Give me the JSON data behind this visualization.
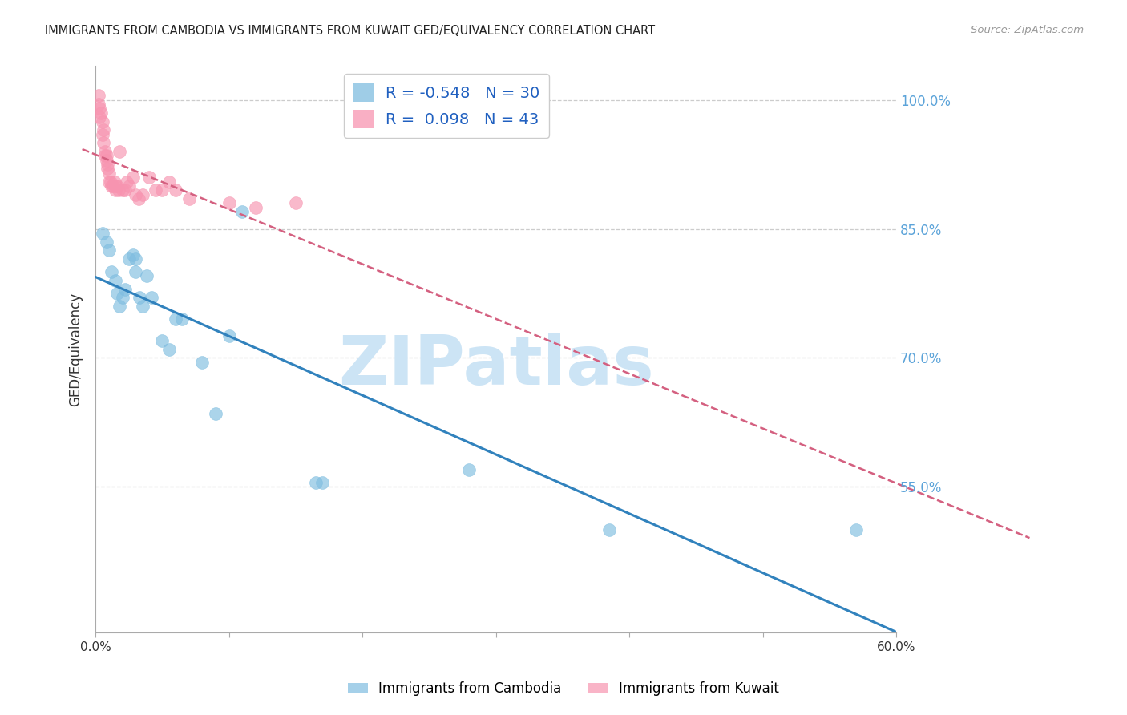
{
  "title": "IMMIGRANTS FROM CAMBODIA VS IMMIGRANTS FROM KUWAIT GED/EQUIVALENCY CORRELATION CHART",
  "source": "Source: ZipAtlas.com",
  "ylabel": "GED/Equivalency",
  "xmin": 0.0,
  "xmax": 0.6,
  "ymin": 0.38,
  "ymax": 1.04,
  "yticks": [
    0.55,
    0.7,
    0.85,
    1.0
  ],
  "ytick_labels": [
    "55.0%",
    "70.0%",
    "85.0%",
    "100.0%"
  ],
  "xtick_positions": [
    0.0,
    0.1,
    0.2,
    0.3,
    0.4,
    0.5,
    0.6
  ],
  "xtick_labels": [
    "0.0%",
    "",
    "",
    "",
    "",
    "",
    "60.0%"
  ],
  "cambodia_color": "#7fbde0",
  "kuwait_color": "#f794b0",
  "cambodia_label": "Immigrants from Cambodia",
  "kuwait_label": "Immigrants from Kuwait",
  "legend_r_cambodia": "R = -0.548",
  "legend_n_cambodia": "N = 30",
  "legend_r_kuwait": "R =  0.098",
  "legend_n_kuwait": "N = 43",
  "watermark": "ZIPatlas",
  "cambodia_x": [
    0.005,
    0.008,
    0.01,
    0.012,
    0.015,
    0.016,
    0.018,
    0.02,
    0.022,
    0.025,
    0.028,
    0.03,
    0.03,
    0.033,
    0.035,
    0.038,
    0.042,
    0.05,
    0.055,
    0.06,
    0.065,
    0.08,
    0.09,
    0.1,
    0.11,
    0.165,
    0.17,
    0.28,
    0.385,
    0.57
  ],
  "cambodia_y": [
    0.845,
    0.835,
    0.825,
    0.8,
    0.79,
    0.775,
    0.76,
    0.77,
    0.78,
    0.815,
    0.82,
    0.815,
    0.8,
    0.77,
    0.76,
    0.795,
    0.77,
    0.72,
    0.71,
    0.745,
    0.745,
    0.695,
    0.635,
    0.725,
    0.87,
    0.555,
    0.555,
    0.57,
    0.5,
    0.5
  ],
  "kuwait_x": [
    0.002,
    0.002,
    0.003,
    0.003,
    0.004,
    0.005,
    0.005,
    0.006,
    0.006,
    0.007,
    0.007,
    0.008,
    0.008,
    0.009,
    0.009,
    0.01,
    0.01,
    0.011,
    0.012,
    0.013,
    0.014,
    0.015,
    0.015,
    0.016,
    0.017,
    0.018,
    0.02,
    0.022,
    0.023,
    0.025,
    0.028,
    0.03,
    0.032,
    0.035,
    0.04,
    0.045,
    0.05,
    0.055,
    0.06,
    0.07,
    0.1,
    0.12,
    0.15
  ],
  "kuwait_y": [
    1.005,
    0.995,
    0.99,
    0.98,
    0.985,
    0.975,
    0.96,
    0.965,
    0.95,
    0.94,
    0.935,
    0.93,
    0.935,
    0.92,
    0.925,
    0.915,
    0.905,
    0.905,
    0.9,
    0.9,
    0.905,
    0.9,
    0.895,
    0.9,
    0.895,
    0.94,
    0.895,
    0.895,
    0.905,
    0.9,
    0.91,
    0.89,
    0.885,
    0.89,
    0.91,
    0.895,
    0.895,
    0.905,
    0.895,
    0.885,
    0.88,
    0.875,
    0.88
  ],
  "blue_line_color": "#3182bd",
  "pink_line_color": "#d46080",
  "grid_color": "#cccccc",
  "axis_color": "#aaaaaa",
  "title_color": "#222222",
  "right_axis_color": "#5ba3d9",
  "legend_text_color": "#2060c0",
  "watermark_color": "#cce4f5"
}
